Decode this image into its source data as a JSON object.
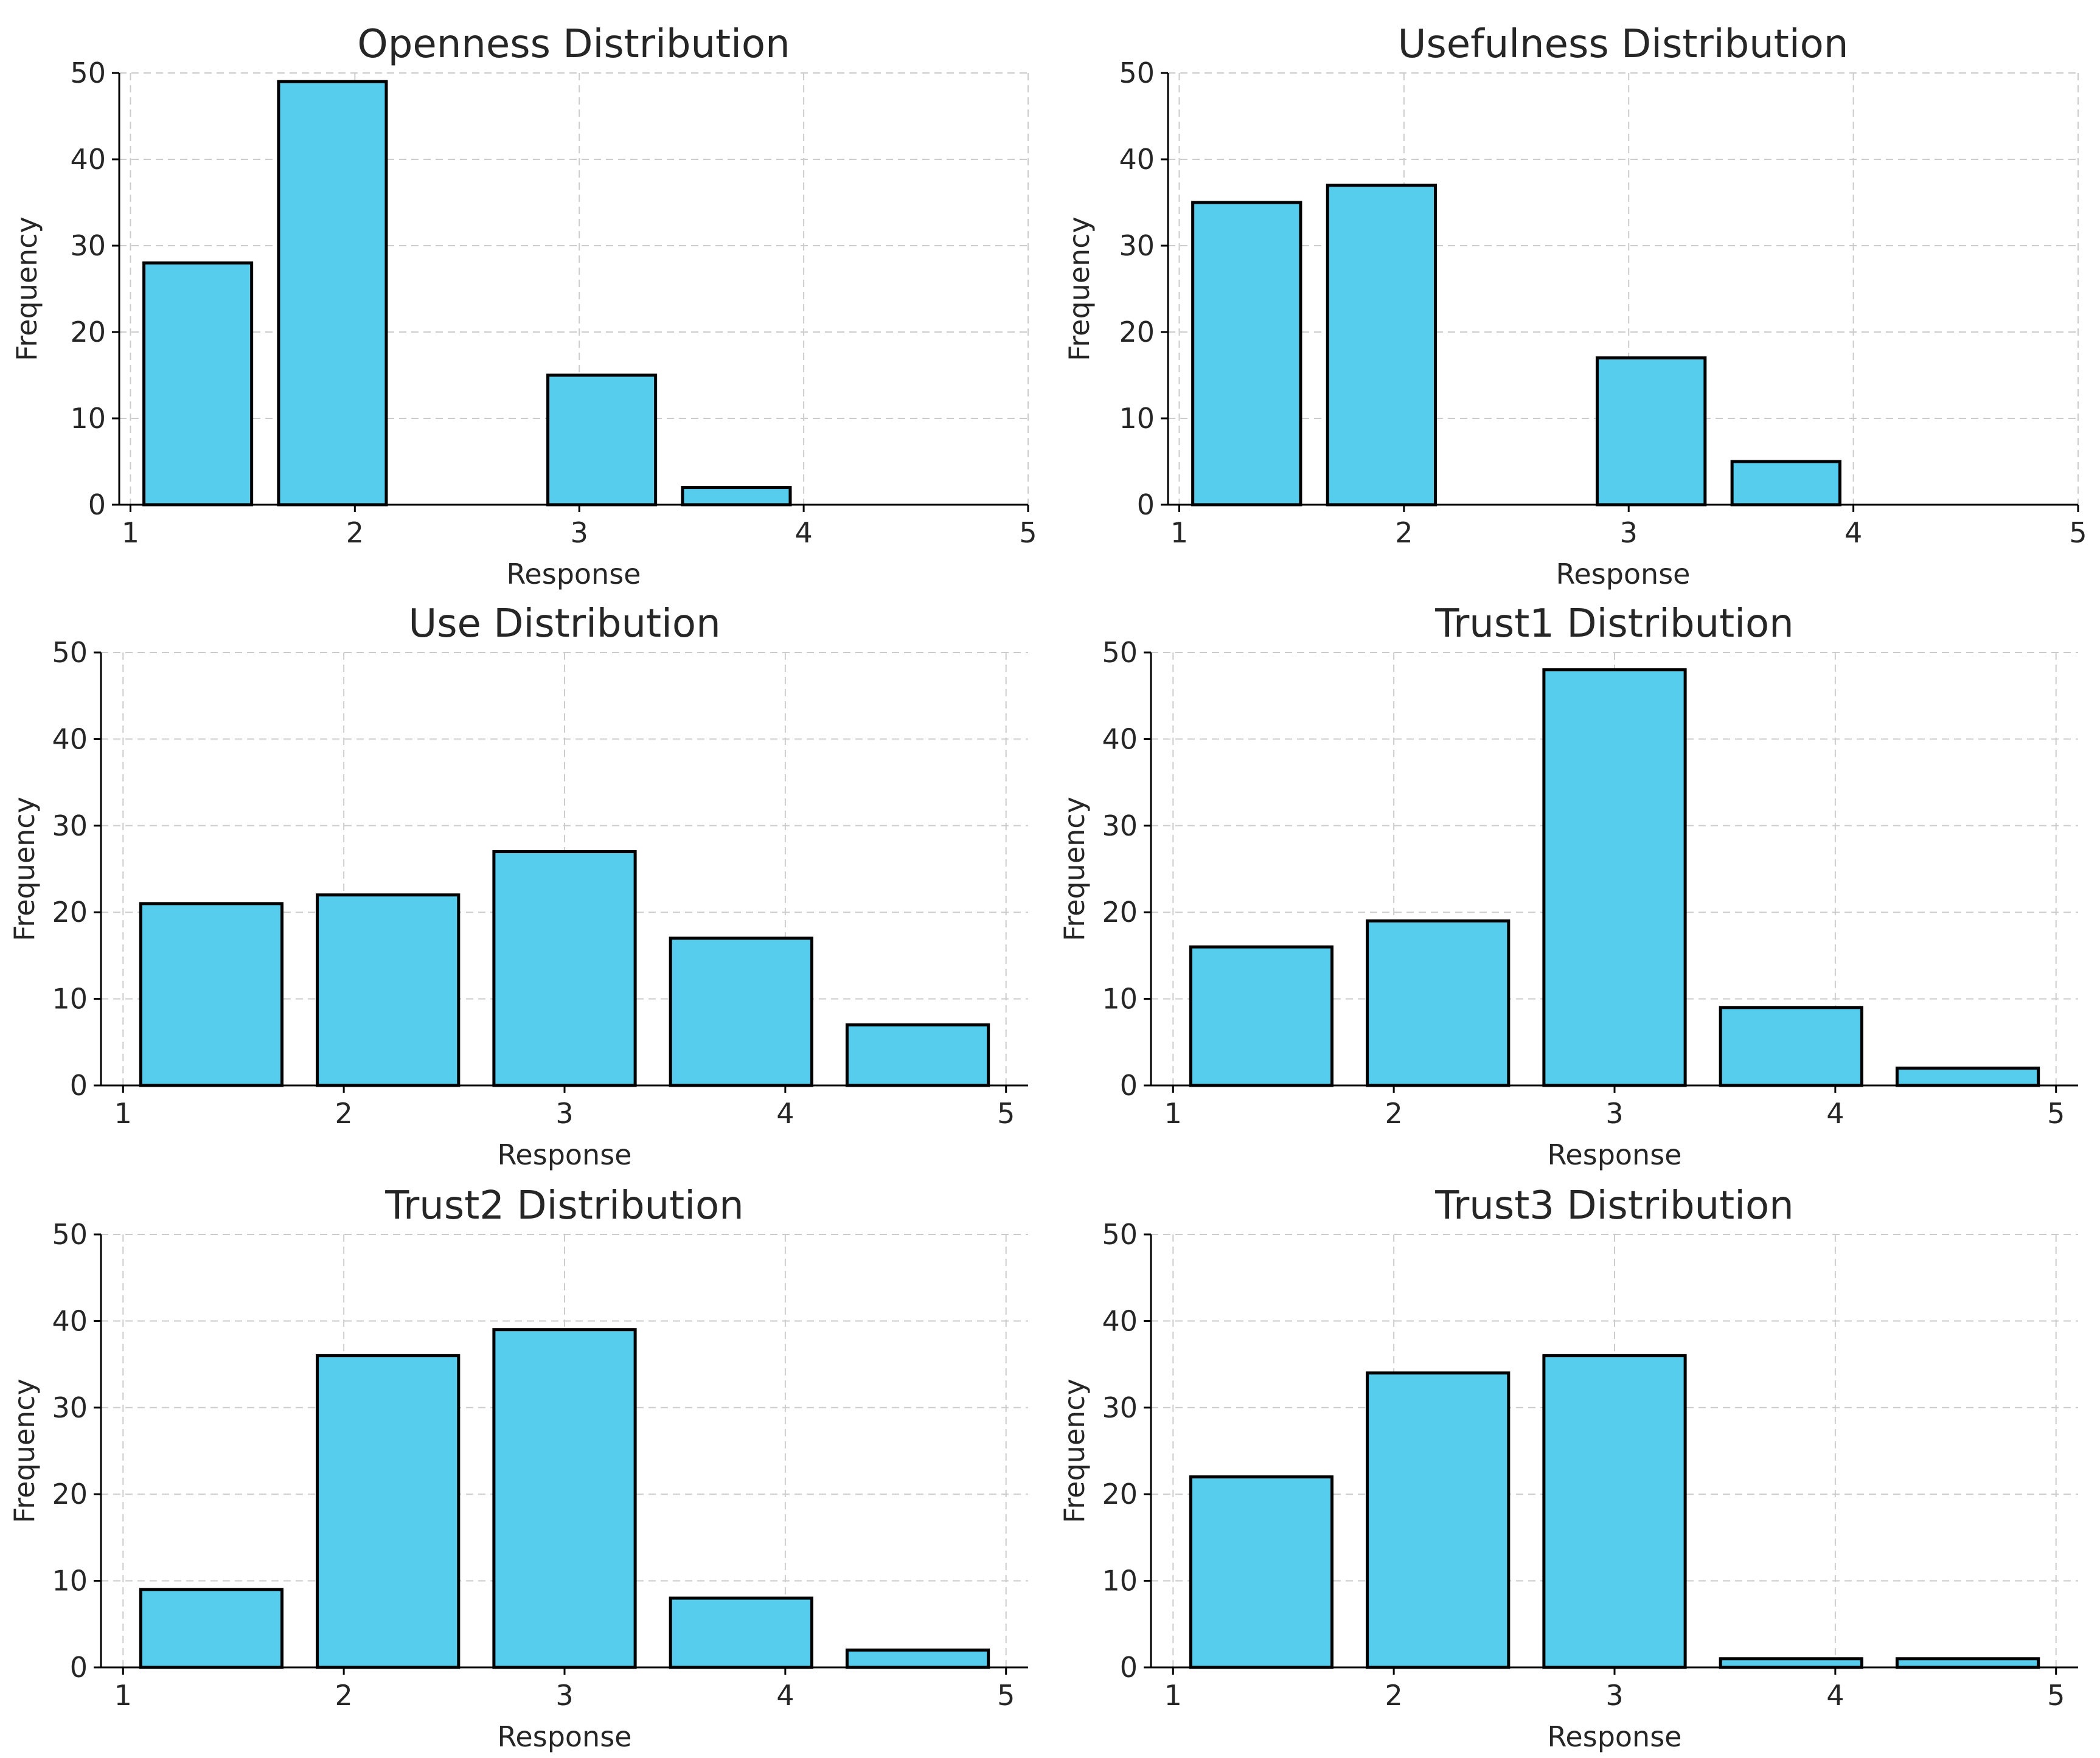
{
  "chart_data": [
    {
      "type": "bar",
      "title": "Openness Distribution",
      "xlabel": "Response",
      "ylabel": "Frequency",
      "xlim": [
        0.95,
        5.0
      ],
      "ylim": [
        0,
        50
      ],
      "xticks": [
        "1",
        "2",
        "3",
        "4",
        "5"
      ],
      "yticks": [
        "0",
        "10",
        "20",
        "30",
        "40",
        "50"
      ],
      "grid": true,
      "bars": [
        {
          "x_start": 1.06,
          "x_end": 1.54,
          "value": 28
        },
        {
          "x_start": 1.66,
          "x_end": 2.14,
          "value": 49
        },
        {
          "x_start": 2.86,
          "x_end": 3.34,
          "value": 15
        },
        {
          "x_start": 3.46,
          "x_end": 3.94,
          "value": 2
        }
      ]
    },
    {
      "type": "bar",
      "title": "Usefulness Distribution",
      "xlabel": "Response",
      "ylabel": "Frequency",
      "xlim": [
        0.95,
        5.0
      ],
      "ylim": [
        0,
        50
      ],
      "xticks": [
        "1",
        "2",
        "3",
        "4",
        "5"
      ],
      "yticks": [
        "0",
        "10",
        "20",
        "30",
        "40",
        "50"
      ],
      "grid": true,
      "bars": [
        {
          "x_start": 1.06,
          "x_end": 1.54,
          "value": 35
        },
        {
          "x_start": 1.66,
          "x_end": 2.14,
          "value": 37
        },
        {
          "x_start": 2.86,
          "x_end": 3.34,
          "value": 17
        },
        {
          "x_start": 3.46,
          "x_end": 3.94,
          "value": 5
        }
      ]
    },
    {
      "type": "bar",
      "title": "Use Distribution",
      "xlabel": "Response",
      "ylabel": "Frequency",
      "xlim": [
        0.9,
        5.1
      ],
      "ylim": [
        0,
        50
      ],
      "xticks": [
        "1",
        "2",
        "3",
        "4",
        "5"
      ],
      "yticks": [
        "0",
        "10",
        "20",
        "30",
        "40",
        "50"
      ],
      "grid": true,
      "bars": [
        {
          "x_start": 1.08,
          "x_end": 1.72,
          "value": 21
        },
        {
          "x_start": 1.88,
          "x_end": 2.52,
          "value": 22
        },
        {
          "x_start": 2.68,
          "x_end": 3.32,
          "value": 27
        },
        {
          "x_start": 3.48,
          "x_end": 4.12,
          "value": 17
        },
        {
          "x_start": 4.28,
          "x_end": 4.92,
          "value": 7
        }
      ]
    },
    {
      "type": "bar",
      "title": "Trust1 Distribution",
      "xlabel": "Response",
      "ylabel": "Frequency",
      "xlim": [
        0.9,
        5.1
      ],
      "ylim": [
        0,
        50
      ],
      "xticks": [
        "1",
        "2",
        "3",
        "4",
        "5"
      ],
      "yticks": [
        "0",
        "10",
        "20",
        "30",
        "40",
        "50"
      ],
      "grid": true,
      "bars": [
        {
          "x_start": 1.08,
          "x_end": 1.72,
          "value": 16
        },
        {
          "x_start": 1.88,
          "x_end": 2.52,
          "value": 19
        },
        {
          "x_start": 2.68,
          "x_end": 3.32,
          "value": 48
        },
        {
          "x_start": 3.48,
          "x_end": 4.12,
          "value": 9
        },
        {
          "x_start": 4.28,
          "x_end": 4.92,
          "value": 2
        }
      ]
    },
    {
      "type": "bar",
      "title": "Trust2 Distribution",
      "xlabel": "Response",
      "ylabel": "Frequency",
      "xlim": [
        0.9,
        5.1
      ],
      "ylim": [
        0,
        50
      ],
      "xticks": [
        "1",
        "2",
        "3",
        "4",
        "5"
      ],
      "yticks": [
        "0",
        "10",
        "20",
        "30",
        "40",
        "50"
      ],
      "grid": true,
      "bars": [
        {
          "x_start": 1.08,
          "x_end": 1.72,
          "value": 9
        },
        {
          "x_start": 1.88,
          "x_end": 2.52,
          "value": 36
        },
        {
          "x_start": 2.68,
          "x_end": 3.32,
          "value": 39
        },
        {
          "x_start": 3.48,
          "x_end": 4.12,
          "value": 8
        },
        {
          "x_start": 4.28,
          "x_end": 4.92,
          "value": 2
        }
      ]
    },
    {
      "type": "bar",
      "title": "Trust3 Distribution",
      "xlabel": "Response",
      "ylabel": "Frequency",
      "xlim": [
        0.9,
        5.1
      ],
      "ylim": [
        0,
        50
      ],
      "xticks": [
        "1",
        "2",
        "3",
        "4",
        "5"
      ],
      "yticks": [
        "0",
        "10",
        "20",
        "30",
        "40",
        "50"
      ],
      "grid": true,
      "bars": [
        {
          "x_start": 1.08,
          "x_end": 1.72,
          "value": 22
        },
        {
          "x_start": 1.88,
          "x_end": 2.52,
          "value": 34
        },
        {
          "x_start": 2.68,
          "x_end": 3.32,
          "value": 36
        },
        {
          "x_start": 3.48,
          "x_end": 4.12,
          "value": 1
        },
        {
          "x_start": 4.28,
          "x_end": 4.92,
          "value": 1
        }
      ]
    }
  ]
}
